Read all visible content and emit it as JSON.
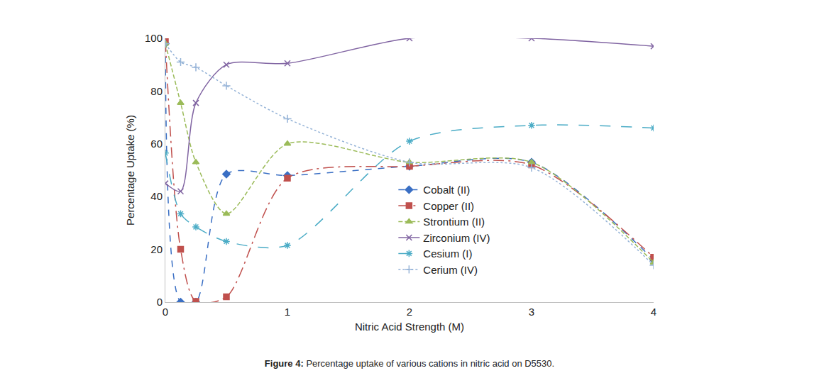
{
  "chart_data": {
    "type": "line",
    "title": "Figure 4: Percentage uptake of various cations in nitric acid on D5530.",
    "x_label": "Nitric Acid Strength (M)",
    "y_label": "Percentage Uptake (%)",
    "x": [
      0,
      0.125,
      0.25,
      0.5,
      1,
      2,
      3,
      4
    ],
    "series": [
      {
        "name": "Cobalt (II)",
        "color": "#3a6fc4",
        "marker": "diamond",
        "line_style": "dash",
        "values": [
          98,
          0,
          0,
          48.5,
          48,
          51.5,
          53,
          16
        ]
      },
      {
        "name": "Copper (II)",
        "color": "#c0504d",
        "marker": "square",
        "line_style": "dashdot",
        "values": [
          99,
          20,
          0.3,
          2,
          47,
          51.5,
          52,
          17
        ]
      },
      {
        "name": "Strontium (II)",
        "color": "#9bbb59",
        "marker": "triangle",
        "line_style": "shortdash",
        "values": [
          98,
          75.5,
          53,
          33.5,
          60,
          53,
          53,
          15
        ]
      },
      {
        "name": "Zirconium (IV)",
        "color": "#8064a2",
        "marker": "x",
        "line_style": "solid",
        "values": [
          45,
          42,
          75.5,
          90,
          90.5,
          100,
          100,
          97
        ]
      },
      {
        "name": "Cesium (I)",
        "color": "#4bacc6",
        "marker": "asterisk",
        "line_style": "longdash",
        "values": [
          56.5,
          33.5,
          28.5,
          23,
          21.5,
          61,
          67,
          66
        ]
      },
      {
        "name": "Cerium (IV)",
        "color": "#95b3d7",
        "marker": "cross",
        "line_style": "dot",
        "values": [
          98,
          91,
          89,
          82,
          69.5,
          53,
          51,
          14
        ]
      }
    ],
    "xlim": [
      0,
      4
    ],
    "xticks": [
      0,
      1,
      2,
      3,
      4
    ],
    "ylim": [
      0,
      100
    ],
    "yticks": [
      0,
      20,
      40,
      60,
      80,
      100
    ],
    "grid": false,
    "legend": "center"
  }
}
